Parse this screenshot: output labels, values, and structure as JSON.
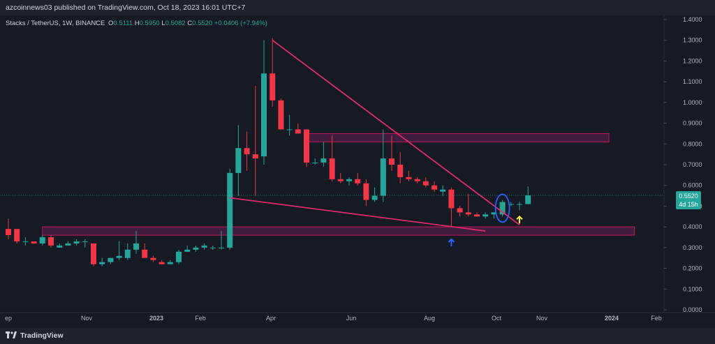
{
  "header": {
    "published": "azcoinnews03 published on TradingView.com, Oct 18, 2023 16:01 UTC+7"
  },
  "symbol_line": {
    "name": "Stacks / TetherUS, 1W, BINANCE",
    "o_label": "O",
    "o": "0.5111",
    "h_label": "H",
    "h": "0.5950",
    "l_label": "L",
    "l": "0.5082",
    "c_label": "C",
    "c": "0.5520",
    "change": "+0.0406 (+7.94%)"
  },
  "price_badge": {
    "price": "0.5520",
    "countdown": "4d 15h"
  },
  "footer": {
    "brand": "TradingView"
  },
  "colors": {
    "up": "#26a69a",
    "down": "#f23645",
    "trendline": "#e02a6e",
    "zone_fill": "#5e1f4d",
    "zone_border": "#c2185b",
    "blue_arrow": "#2962ff",
    "yellow_arrow": "#ffeb3b",
    "circle": "#2962ff"
  },
  "chart_data": {
    "type": "candlestick",
    "ylim": [
      0.0,
      1.4
    ],
    "y_ticks": [
      "1.4000",
      "1.3000",
      "1.2000",
      "1.1000",
      "1.0000",
      "0.9000",
      "0.8000",
      "0.7000",
      "0.6000",
      "0.5000",
      "0.4000",
      "0.3000",
      "0.2000",
      "0.1000",
      "0.0000"
    ],
    "x_ticks": [
      "ep",
      "Nov",
      "2023",
      "Feb",
      "Apr",
      "Jun",
      "Aug",
      "Oct",
      "Nov",
      "2024",
      "Feb"
    ],
    "candles": [
      {
        "o": 0.39,
        "h": 0.44,
        "l": 0.34,
        "c": 0.36
      },
      {
        "o": 0.39,
        "h": 0.39,
        "l": 0.32,
        "c": 0.33
      },
      {
        "o": 0.33,
        "h": 0.35,
        "l": 0.31,
        "c": 0.33
      },
      {
        "o": 0.33,
        "h": 0.33,
        "l": 0.32,
        "c": 0.32
      },
      {
        "o": 0.32,
        "h": 0.36,
        "l": 0.31,
        "c": 0.35
      },
      {
        "o": 0.35,
        "h": 0.36,
        "l": 0.3,
        "c": 0.31
      },
      {
        "o": 0.3,
        "h": 0.32,
        "l": 0.3,
        "c": 0.31
      },
      {
        "o": 0.31,
        "h": 0.33,
        "l": 0.31,
        "c": 0.32
      },
      {
        "o": 0.32,
        "h": 0.34,
        "l": 0.31,
        "c": 0.33
      },
      {
        "o": 0.33,
        "h": 0.34,
        "l": 0.3,
        "c": 0.33
      },
      {
        "o": 0.32,
        "h": 0.32,
        "l": 0.21,
        "c": 0.22
      },
      {
        "o": 0.22,
        "h": 0.25,
        "l": 0.21,
        "c": 0.23
      },
      {
        "o": 0.23,
        "h": 0.25,
        "l": 0.22,
        "c": 0.25
      },
      {
        "o": 0.25,
        "h": 0.33,
        "l": 0.24,
        "c": 0.26
      },
      {
        "o": 0.25,
        "h": 0.32,
        "l": 0.24,
        "c": 0.29
      },
      {
        "o": 0.29,
        "h": 0.38,
        "l": 0.27,
        "c": 0.32
      },
      {
        "o": 0.29,
        "h": 0.32,
        "l": 0.25,
        "c": 0.25
      },
      {
        "o": 0.25,
        "h": 0.26,
        "l": 0.23,
        "c": 0.24
      },
      {
        "o": 0.23,
        "h": 0.24,
        "l": 0.22,
        "c": 0.22
      },
      {
        "o": 0.22,
        "h": 0.24,
        "l": 0.22,
        "c": 0.23
      },
      {
        "o": 0.23,
        "h": 0.29,
        "l": 0.22,
        "c": 0.28
      },
      {
        "o": 0.28,
        "h": 0.31,
        "l": 0.28,
        "c": 0.29
      },
      {
        "o": 0.29,
        "h": 0.31,
        "l": 0.28,
        "c": 0.3
      },
      {
        "o": 0.3,
        "h": 0.32,
        "l": 0.29,
        "c": 0.31
      },
      {
        "o": 0.3,
        "h": 0.31,
        "l": 0.29,
        "c": 0.3
      },
      {
        "o": 0.3,
        "h": 0.38,
        "l": 0.29,
        "c": 0.3
      },
      {
        "o": 0.3,
        "h": 0.68,
        "l": 0.29,
        "c": 0.66
      },
      {
        "o": 0.66,
        "h": 0.89,
        "l": 0.55,
        "c": 0.78
      },
      {
        "o": 0.78,
        "h": 0.86,
        "l": 0.67,
        "c": 0.75
      },
      {
        "o": 0.75,
        "h": 1.08,
        "l": 0.55,
        "c": 0.73
      },
      {
        "o": 0.74,
        "h": 1.3,
        "l": 0.7,
        "c": 1.14
      },
      {
        "o": 1.14,
        "h": 1.31,
        "l": 0.98,
        "c": 1.01
      },
      {
        "o": 1.01,
        "h": 1.02,
        "l": 0.87,
        "c": 0.87
      },
      {
        "o": 0.87,
        "h": 0.94,
        "l": 0.84,
        "c": 0.87
      },
      {
        "o": 0.87,
        "h": 0.9,
        "l": 0.86,
        "c": 0.85
      },
      {
        "o": 0.87,
        "h": 0.87,
        "l": 0.69,
        "c": 0.71
      },
      {
        "o": 0.71,
        "h": 0.73,
        "l": 0.7,
        "c": 0.71
      },
      {
        "o": 0.71,
        "h": 0.81,
        "l": 0.69,
        "c": 0.73
      },
      {
        "o": 0.73,
        "h": 0.84,
        "l": 0.62,
        "c": 0.63
      },
      {
        "o": 0.63,
        "h": 0.66,
        "l": 0.61,
        "c": 0.62
      },
      {
        "o": 0.62,
        "h": 0.64,
        "l": 0.6,
        "c": 0.63
      },
      {
        "o": 0.63,
        "h": 0.66,
        "l": 0.6,
        "c": 0.61
      },
      {
        "o": 0.61,
        "h": 0.63,
        "l": 0.5,
        "c": 0.53
      },
      {
        "o": 0.53,
        "h": 0.59,
        "l": 0.52,
        "c": 0.55
      },
      {
        "o": 0.55,
        "h": 0.87,
        "l": 0.52,
        "c": 0.73
      },
      {
        "o": 0.73,
        "h": 0.84,
        "l": 0.67,
        "c": 0.7
      },
      {
        "o": 0.7,
        "h": 0.76,
        "l": 0.61,
        "c": 0.64
      },
      {
        "o": 0.64,
        "h": 0.67,
        "l": 0.62,
        "c": 0.63
      },
      {
        "o": 0.63,
        "h": 0.64,
        "l": 0.61,
        "c": 0.62
      },
      {
        "o": 0.62,
        "h": 0.64,
        "l": 0.59,
        "c": 0.6
      },
      {
        "o": 0.6,
        "h": 0.62,
        "l": 0.57,
        "c": 0.58
      },
      {
        "o": 0.57,
        "h": 0.6,
        "l": 0.55,
        "c": 0.58
      },
      {
        "o": 0.58,
        "h": 0.59,
        "l": 0.4,
        "c": 0.49
      },
      {
        "o": 0.49,
        "h": 0.5,
        "l": 0.45,
        "c": 0.47
      },
      {
        "o": 0.47,
        "h": 0.56,
        "l": 0.45,
        "c": 0.46
      },
      {
        "o": 0.46,
        "h": 0.47,
        "l": 0.45,
        "c": 0.45
      },
      {
        "o": 0.45,
        "h": 0.47,
        "l": 0.44,
        "c": 0.46
      },
      {
        "o": 0.46,
        "h": 0.47,
        "l": 0.44,
        "c": 0.47
      },
      {
        "o": 0.46,
        "h": 0.53,
        "l": 0.45,
        "c": 0.52
      },
      {
        "o": 0.51,
        "h": 0.52,
        "l": 0.5,
        "c": 0.51
      },
      {
        "o": 0.51,
        "h": 0.52,
        "l": 0.48,
        "c": 0.51
      },
      {
        "o": 0.51,
        "h": 0.595,
        "l": 0.508,
        "c": 0.552
      }
    ],
    "annotations": {
      "resistance_zone": {
        "y_low": 0.81,
        "y_high": 0.85
      },
      "support_zone": {
        "y_low": 0.36,
        "y_high": 0.4
      },
      "descending_line": [
        {
          "bar": 31,
          "y": 1.3
        },
        {
          "bar": 60,
          "y": 0.41
        }
      ],
      "lower_line": [
        {
          "bar": 26,
          "y": 0.54
        },
        {
          "bar": 56,
          "y": 0.38
        }
      ],
      "circle_bar": 58,
      "blue_arrow_bar": 52,
      "yellow_arrow_bar": 60
    }
  }
}
